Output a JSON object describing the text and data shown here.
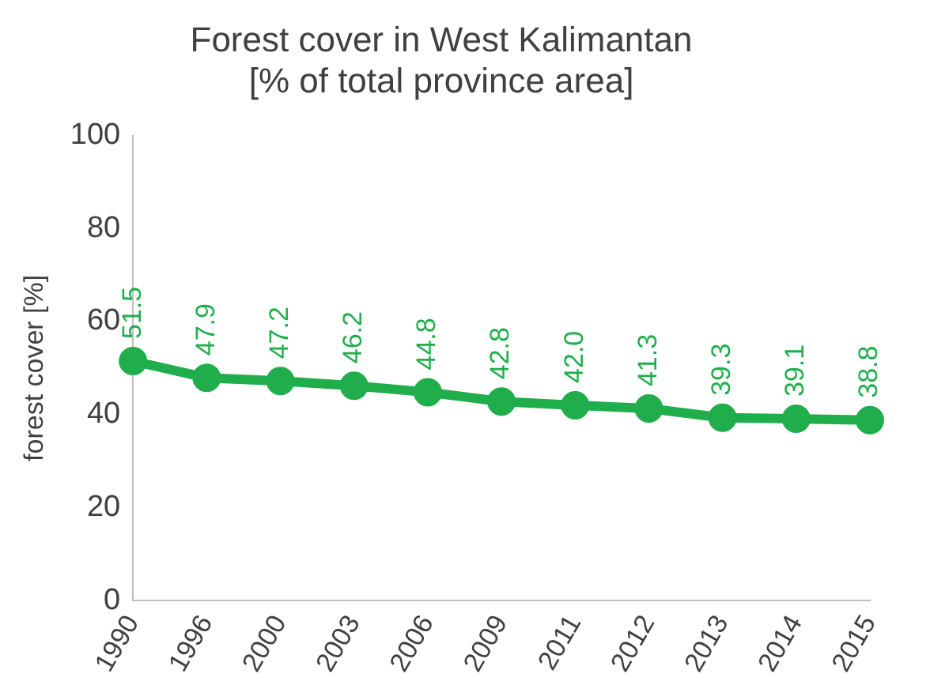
{
  "chart_data": {
    "type": "line",
    "title": "Forest cover in West Kalimantan",
    "subtitle": "[% of total province area]",
    "ylabel": "forest cover [%]",
    "categories": [
      "1990",
      "1996",
      "2000",
      "2003",
      "2006",
      "2009",
      "2011",
      "2012",
      "2013",
      "2014",
      "2015"
    ],
    "series": [
      {
        "color": "#1fae4b",
        "values": [
          51.5,
          47.9,
          47.2,
          46.2,
          44.8,
          42.8,
          42.0,
          41.3,
          39.3,
          39.1,
          38.8
        ],
        "value_labels": [
          "51.5",
          "47.9",
          "47.2",
          "46.2",
          "44.8",
          "42.8",
          "42.0",
          "41.3",
          "39.3",
          "39.1",
          "38.8"
        ]
      }
    ],
    "ylim": [
      0,
      100
    ],
    "yticks": [
      0,
      20,
      40,
      60,
      80,
      100
    ],
    "grid": false,
    "legend": false,
    "marker": "circle",
    "line_style": "solid"
  }
}
